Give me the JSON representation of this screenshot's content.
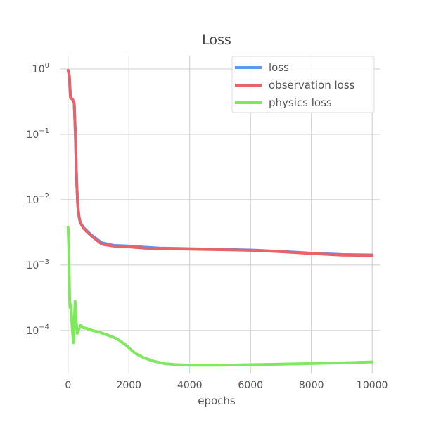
{
  "chart_data": {
    "type": "line",
    "title": "Loss",
    "xlabel": "epochs",
    "ylabel": "",
    "xlim": [
      -250,
      10250
    ],
    "ylim": [
      2.2e-05,
      1.6
    ],
    "yscale": "log",
    "grid": true,
    "legend_position": "top-right",
    "x_ticks": [
      0,
      2000,
      4000,
      6000,
      8000,
      10000
    ],
    "x_tick_labels": [
      "0",
      "2000",
      "4000",
      "6000",
      "8000",
      "10000"
    ],
    "y_ticks": [
      1,
      0.1,
      0.01,
      0.001,
      0.0001
    ],
    "y_tick_labels": [
      {
        "base": "10",
        "exp": "0"
      },
      {
        "base": "10",
        "exp": "−1"
      },
      {
        "base": "10",
        "exp": "−2"
      },
      {
        "base": "10",
        "exp": "−3"
      },
      {
        "base": "10",
        "exp": "−4"
      }
    ],
    "series": [
      {
        "name": "loss",
        "color": "#6495ED",
        "x": [
          0,
          40,
          80,
          120,
          150,
          200,
          240,
          280,
          320,
          360,
          400,
          500,
          600,
          800,
          1000,
          1100,
          1200,
          1500,
          2000,
          2500,
          3000,
          4000,
          5000,
          6000,
          7000,
          8000,
          9000,
          10000
        ],
        "y": [
          0.95,
          0.8,
          0.36,
          0.35,
          0.34,
          0.3,
          0.1,
          0.02,
          0.008,
          0.0055,
          0.0045,
          0.0038,
          0.0034,
          0.0028,
          0.0024,
          0.0022,
          0.00215,
          0.002,
          0.00195,
          0.00188,
          0.00182,
          0.00178,
          0.00174,
          0.0017,
          0.00162,
          0.00152,
          0.00145,
          0.00143
        ]
      },
      {
        "name": "observation loss",
        "color": "#E8626A",
        "x": [
          0,
          40,
          80,
          120,
          150,
          200,
          240,
          280,
          320,
          360,
          400,
          500,
          600,
          800,
          1000,
          1100,
          1200,
          1500,
          2000,
          2500,
          3000,
          4000,
          5000,
          6000,
          7000,
          8000,
          9000,
          10000
        ],
        "y": [
          0.95,
          0.8,
          0.36,
          0.35,
          0.34,
          0.3,
          0.1,
          0.02,
          0.008,
          0.0055,
          0.0045,
          0.0037,
          0.0033,
          0.0027,
          0.0023,
          0.0021,
          0.00205,
          0.00195,
          0.0019,
          0.00182,
          0.00178,
          0.00175,
          0.00172,
          0.00168,
          0.0016,
          0.0015,
          0.00142,
          0.0014
        ]
      },
      {
        "name": "physics loss",
        "color": "#7FE85E",
        "x": [
          0,
          20,
          50,
          70,
          90,
          110,
          130,
          160,
          180,
          200,
          230,
          260,
          300,
          340,
          380,
          420,
          460,
          500,
          600,
          800,
          1000,
          1300,
          1600,
          1900,
          2200,
          2500,
          2800,
          3200,
          3600,
          4000,
          5000,
          6000,
          7000,
          8000,
          9000,
          10000
        ],
        "y": [
          0.0038,
          0.002,
          0.0003,
          0.00022,
          0.00025,
          0.00018,
          0.00012,
          8e-05,
          6.5e-05,
          0.00013,
          0.00028,
          0.00015,
          9e-05,
          0.0001,
          0.00011,
          0.00012,
          0.000115,
          0.00011,
          0.000108,
          0.0001,
          9.5e-05,
          8.5e-05,
          7.5e-05,
          6e-05,
          4.5e-05,
          3.8e-05,
          3.4e-05,
          3.1e-05,
          3e-05,
          2.95e-05,
          2.95e-05,
          3e-05,
          3.05e-05,
          3.12e-05,
          3.2e-05,
          3.3e-05
        ]
      }
    ]
  }
}
